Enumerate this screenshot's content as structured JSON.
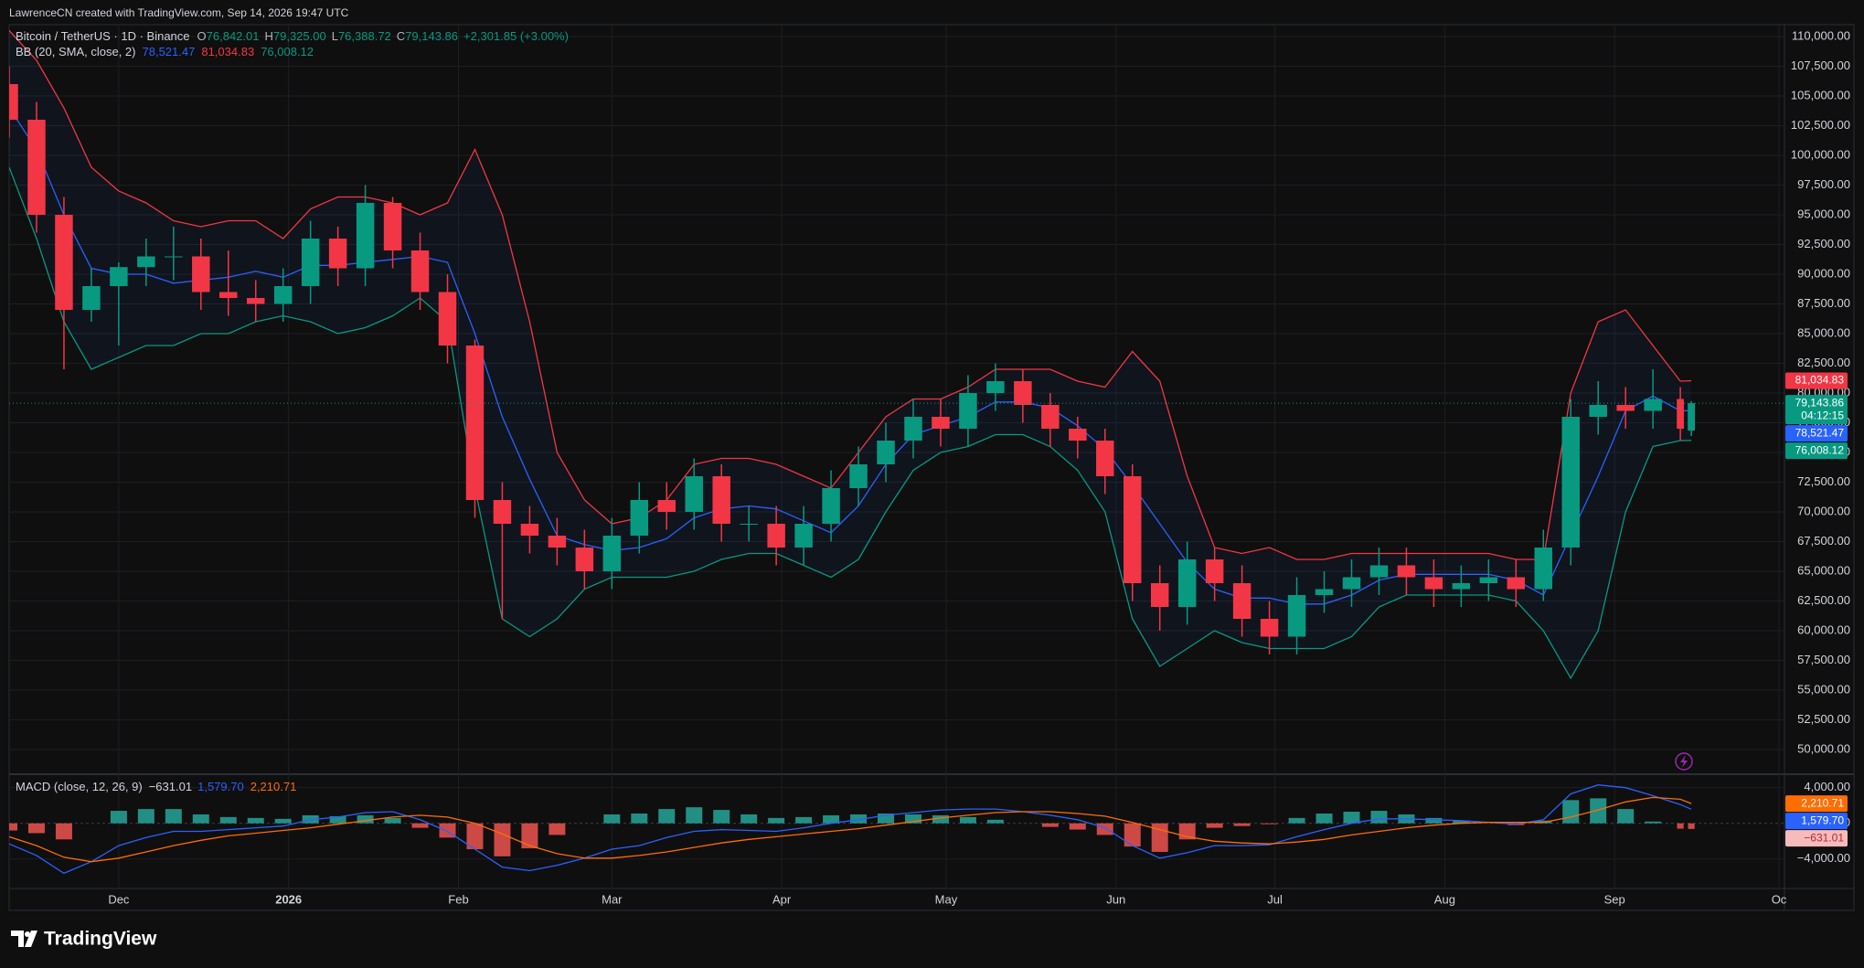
{
  "header": {
    "attribution": "LawrenceCN created with TradingView.com, Sep 14, 2026 19:47 UTC"
  },
  "chart_data": [
    {
      "type": "candlestick",
      "title": "Bitcoin / TetherUS · 1D · Binance",
      "ohlc_legend": [
        {
          "key": "O",
          "value": "76,842.01"
        },
        {
          "key": "H",
          "value": "79,325.00"
        },
        {
          "key": "L",
          "value": "76,388.72"
        },
        {
          "key": "C",
          "value": "79,143.86"
        }
      ],
      "change": "+2,301.85 (+3.00%)",
      "indicator": "BB (20, SMA, close, 2)",
      "indicator_values": [
        {
          "value": "78,521.47",
          "color": "#2962ff"
        },
        {
          "value": "81,034.83",
          "color": "#f23645"
        },
        {
          "value": "76,008.12",
          "color": "#089981"
        }
      ],
      "x": [
        0,
        5,
        10,
        15,
        20,
        25,
        30,
        35,
        40,
        45,
        50,
        55,
        60,
        65,
        70,
        75,
        80,
        85,
        90,
        95,
        100,
        105,
        110,
        115,
        120,
        125,
        130,
        135,
        140,
        145,
        150,
        155,
        160,
        165,
        170,
        175,
        180,
        185,
        190,
        195,
        200,
        205,
        210,
        215,
        220,
        225,
        230,
        235,
        240,
        245,
        250,
        255,
        260,
        265,
        270,
        275,
        280,
        285,
        290,
        295,
        300,
        305,
        307
      ],
      "open": [
        106000,
        103000,
        95000,
        87000,
        89000,
        90600,
        91500,
        91500,
        88500,
        88000,
        87500,
        89000,
        93000,
        90500,
        96000,
        92000,
        88500,
        84000,
        71000,
        69000,
        68000,
        67000,
        65000,
        68000,
        71000,
        70000,
        73000,
        69000,
        69000,
        67000,
        69000,
        72000,
        74000,
        76000,
        78000,
        77000,
        80000,
        81000,
        79000,
        77000,
        76000,
        73000,
        64000,
        62000,
        66000,
        64000,
        61000,
        59500,
        63000,
        63500,
        64500,
        65500,
        64500,
        63500,
        64000,
        64500,
        63500,
        67000,
        78000,
        79000,
        78500,
        79500,
        76842.01
      ],
      "high": [
        107500,
        104500,
        96500,
        90500,
        91000,
        93000,
        94000,
        93000,
        92000,
        89500,
        90500,
        94500,
        94000,
        97500,
        96500,
        93500,
        90000,
        84500,
        72500,
        70500,
        69500,
        68500,
        69500,
        72500,
        72500,
        74500,
        74000,
        70500,
        70500,
        70500,
        73500,
        75500,
        77500,
        79500,
        79500,
        81500,
        82500,
        82000,
        80000,
        78000,
        77000,
        74000,
        65500,
        67500,
        67000,
        65500,
        62500,
        64500,
        65000,
        66000,
        67000,
        67000,
        66000,
        65500,
        66000,
        66000,
        68500,
        79500,
        81000,
        80500,
        82000,
        80500,
        79325
      ],
      "low": [
        101500,
        93500,
        82000,
        86000,
        84000,
        89000,
        89500,
        87000,
        86500,
        86000,
        86000,
        87500,
        89000,
        89000,
        90500,
        87000,
        82500,
        69500,
        61000,
        66500,
        65500,
        63500,
        63500,
        66500,
        68500,
        68500,
        67500,
        67500,
        65500,
        65500,
        67500,
        70500,
        72500,
        74500,
        75500,
        75500,
        78500,
        77500,
        75500,
        74500,
        71500,
        62500,
        60000,
        60500,
        62500,
        59500,
        58000,
        58000,
        61500,
        62000,
        63000,
        63000,
        62000,
        62000,
        62500,
        62000,
        62500,
        65500,
        76500,
        77000,
        77000,
        76000,
        76388.72
      ],
      "close": [
        103000,
        95000,
        87000,
        89000,
        90600,
        91500,
        91500,
        88500,
        88000,
        87500,
        89000,
        93000,
        90500,
        96000,
        92000,
        88500,
        84000,
        71000,
        69000,
        68000,
        67000,
        65000,
        68000,
        71000,
        70000,
        73000,
        69000,
        69000,
        67000,
        69000,
        72000,
        74000,
        76000,
        78000,
        77000,
        80000,
        81000,
        79000,
        77000,
        76000,
        73000,
        64000,
        62000,
        66000,
        64000,
        61000,
        59500,
        63000,
        63500,
        64500,
        65500,
        64500,
        63500,
        64000,
        64500,
        63500,
        67000,
        78000,
        79000,
        78500,
        79500,
        77000,
        79143.86
      ],
      "up_color": "#089981",
      "down_color": "#f23645",
      "close_badge": {
        "label": "79,143.86",
        "countdown": "04:12:15"
      },
      "series": [
        {
          "color": "#f23645",
          "badge_label": "81,034.83",
          "values": [
            110500,
            108000,
            104000,
            99000,
            97000,
            96000,
            94500,
            94000,
            94500,
            94500,
            93000,
            95500,
            96500,
            96500,
            96000,
            95000,
            96000,
            100500,
            95000,
            86000,
            75000,
            71000,
            69000,
            69500,
            71000,
            74000,
            74500,
            74500,
            74000,
            73000,
            72000,
            75000,
            78000,
            79500,
            79500,
            80500,
            82000,
            82000,
            82000,
            81000,
            80500,
            83500,
            81000,
            73000,
            67000,
            66500,
            67000,
            66000,
            66000,
            66500,
            66500,
            66500,
            66500,
            66500,
            66500,
            66000,
            66000,
            80000,
            86000,
            87000,
            84000,
            81000,
            81034.83
          ]
        },
        {
          "color": "#2962ff",
          "badge_label": "78,521.47",
          "values": [
            104000,
            100500,
            95000,
            90500,
            90000,
            90000,
            89250,
            89500,
            89750,
            90250,
            89750,
            90750,
            90750,
            91000,
            91250,
            91500,
            91000,
            85000,
            78000,
            72750,
            68000,
            67250,
            66750,
            67000,
            67750,
            69500,
            70250,
            70500,
            70250,
            69250,
            68250,
            70500,
            74000,
            76500,
            77250,
            78000,
            79250,
            79250,
            78750,
            77250,
            75250,
            72250,
            69000,
            65750,
            63500,
            62750,
            62750,
            62250,
            62250,
            63000,
            64250,
            64750,
            64750,
            64750,
            64750,
            64250,
            63000,
            68000,
            73000,
            78500,
            79750,
            78500,
            78521.47
          ]
        },
        {
          "color": "#089981",
          "badge_label": "76,008.12",
          "values": [
            99000,
            93000,
            86000,
            82000,
            83000,
            84000,
            84000,
            85000,
            85000,
            86000,
            86500,
            86000,
            85000,
            85500,
            86500,
            88000,
            86000,
            72000,
            61000,
            59500,
            61000,
            63500,
            64500,
            64500,
            64500,
            65000,
            66000,
            66500,
            66500,
            65500,
            64500,
            66000,
            70000,
            73500,
            75000,
            75500,
            76500,
            76500,
            75500,
            73500,
            70000,
            61000,
            57000,
            58500,
            60000,
            59000,
            58500,
            58500,
            58500,
            59500,
            62000,
            63000,
            63000,
            63000,
            63000,
            62500,
            60000,
            56000,
            60000,
            70000,
            75500,
            76000,
            76008.12
          ]
        }
      ],
      "band_fill": "rgba(41,98,255,0.06)",
      "xlim": [
        0,
        324
      ],
      "xticks": [
        {
          "value": 20,
          "label": "Dec"
        },
        {
          "value": 51,
          "label": "2026"
        },
        {
          "value": 82,
          "label": "Feb"
        },
        {
          "value": 110,
          "label": "Mar"
        },
        {
          "value": 141,
          "label": "Apr"
        },
        {
          "value": 171,
          "label": "May"
        },
        {
          "value": 202,
          "label": "Jun"
        },
        {
          "value": 231,
          "label": "Jul"
        },
        {
          "value": 262,
          "label": "Aug"
        },
        {
          "value": 293,
          "label": "Sep"
        },
        {
          "value": 323,
          "label": "Oc"
        }
      ],
      "ylim": [
        48000,
        111000
      ],
      "yticks": [
        {
          "value": 110000,
          "label": "110,000.00"
        },
        {
          "value": 107500,
          "label": "107,500.00"
        },
        {
          "value": 105000,
          "label": "105,000.00"
        },
        {
          "value": 102500,
          "label": "102,500.00"
        },
        {
          "value": 100000,
          "label": "100,000.00"
        },
        {
          "value": 97500,
          "label": "97,500.00"
        },
        {
          "value": 95000,
          "label": "95,000.00"
        },
        {
          "value": 92500,
          "label": "92,500.00"
        },
        {
          "value": 90000,
          "label": "90,000.00"
        },
        {
          "value": 87500,
          "label": "87,500.00"
        },
        {
          "value": 85000,
          "label": "85,000.00"
        },
        {
          "value": 82500,
          "label": "82,500.00"
        },
        {
          "value": 80000,
          "label": "80,000.00"
        },
        {
          "value": 77500,
          "label": "77,500.00"
        },
        {
          "value": 75000,
          "label": "75,000.00"
        },
        {
          "value": 72500,
          "label": "72,500.00"
        },
        {
          "value": 70000,
          "label": "70,000.00"
        },
        {
          "value": 67500,
          "label": "67,500.00"
        },
        {
          "value": 65000,
          "label": "65,000.00"
        },
        {
          "value": 62500,
          "label": "62,500.00"
        },
        {
          "value": 60000,
          "label": "60,000.00"
        },
        {
          "value": 57500,
          "label": "57,500.00"
        },
        {
          "value": 55000,
          "label": "55,000.00"
        },
        {
          "value": 52500,
          "label": "52,500.00"
        },
        {
          "value": 50000,
          "label": "50,000.00"
        }
      ],
      "grid": true
    },
    {
      "type": "macd",
      "title": "MACD (close, 12, 26, 9)",
      "indicator_values": [
        {
          "value": "−631.01",
          "color": "#d1d4dc"
        },
        {
          "value": "1,579.70",
          "color": "#2962ff"
        },
        {
          "value": "2,210.71",
          "color": "#ff6d00"
        }
      ],
      "x": [
        0,
        5,
        10,
        15,
        20,
        25,
        30,
        35,
        40,
        45,
        50,
        55,
        60,
        65,
        70,
        75,
        80,
        85,
        90,
        95,
        100,
        105,
        110,
        115,
        120,
        125,
        130,
        135,
        140,
        145,
        150,
        155,
        160,
        165,
        170,
        175,
        180,
        185,
        190,
        195,
        200,
        205,
        210,
        215,
        220,
        225,
        230,
        235,
        240,
        245,
        250,
        255,
        260,
        265,
        270,
        275,
        280,
        285,
        290,
        295,
        300,
        305,
        307
      ],
      "histogram": {
        "pos_color": "#26a69a",
        "neg_color": "#ef5350",
        "badge_label": "−631.01",
        "badge_color": "#f8bbbb",
        "values": [
          -800,
          -1100,
          -1800,
          0,
          1400,
          1600,
          1600,
          1000,
          700,
          600,
          500,
          900,
          800,
          900,
          600,
          -500,
          -1600,
          -2900,
          -3700,
          -2800,
          -1300,
          0,
          1000,
          1100,
          1600,
          1800,
          1500,
          1000,
          600,
          700,
          900,
          1000,
          1100,
          1000,
          900,
          700,
          400,
          0,
          -400,
          -700,
          -1300,
          -2600,
          -3200,
          -1800,
          -500,
          -300,
          -100,
          600,
          1100,
          1300,
          1400,
          1000,
          600,
          300,
          0,
          -200,
          300,
          2600,
          2800,
          1600,
          200,
          -600,
          -631.01
        ]
      },
      "series": [
        {
          "color": "#2962ff",
          "badge_label": "1,579.70",
          "values": [
            -2300,
            -3600,
            -5600,
            -4300,
            -2500,
            -1600,
            -900,
            -900,
            -700,
            -500,
            -300,
            400,
            700,
            1200,
            1300,
            400,
            -900,
            -2900,
            -4900,
            -5300,
            -4700,
            -3900,
            -2900,
            -2500,
            -1600,
            -900,
            -700,
            -800,
            -900,
            -500,
            0,
            400,
            900,
            1200,
            1500,
            1600,
            1600,
            1300,
            900,
            400,
            -500,
            -2500,
            -3900,
            -3300,
            -2500,
            -2500,
            -2400,
            -1500,
            -700,
            0,
            500,
            500,
            400,
            300,
            100,
            -100,
            400,
            3300,
            4300,
            4000,
            3100,
            2100,
            1579.7
          ]
        },
        {
          "color": "#ff6d00",
          "badge_label": "2,210.71",
          "values": [
            -1500,
            -2500,
            -3800,
            -4300,
            -3900,
            -3200,
            -2500,
            -1900,
            -1400,
            -1100,
            -800,
            -500,
            -100,
            300,
            700,
            900,
            700,
            0,
            -1200,
            -2500,
            -3400,
            -3900,
            -3900,
            -3600,
            -3200,
            -2700,
            -2200,
            -1800,
            -1500,
            -1200,
            -900,
            -600,
            -200,
            200,
            600,
            900,
            1200,
            1300,
            1300,
            1100,
            800,
            100,
            -700,
            -1500,
            -2000,
            -2200,
            -2300,
            -2100,
            -1800,
            -1300,
            -900,
            -500,
            -200,
            0,
            100,
            100,
            100,
            700,
            1500,
            2400,
            2900,
            2700,
            2210.71
          ]
        }
      ],
      "xlim": [
        0,
        324
      ],
      "ylim": [
        -7300,
        5400
      ],
      "yticks": [
        {
          "value": 4000,
          "label": "4,000.00"
        },
        {
          "value": 0,
          "label": "0.00"
        },
        {
          "value": -4000,
          "label": "−4,000.00"
        }
      ]
    }
  ],
  "footer": {
    "brand": "TradingView"
  }
}
